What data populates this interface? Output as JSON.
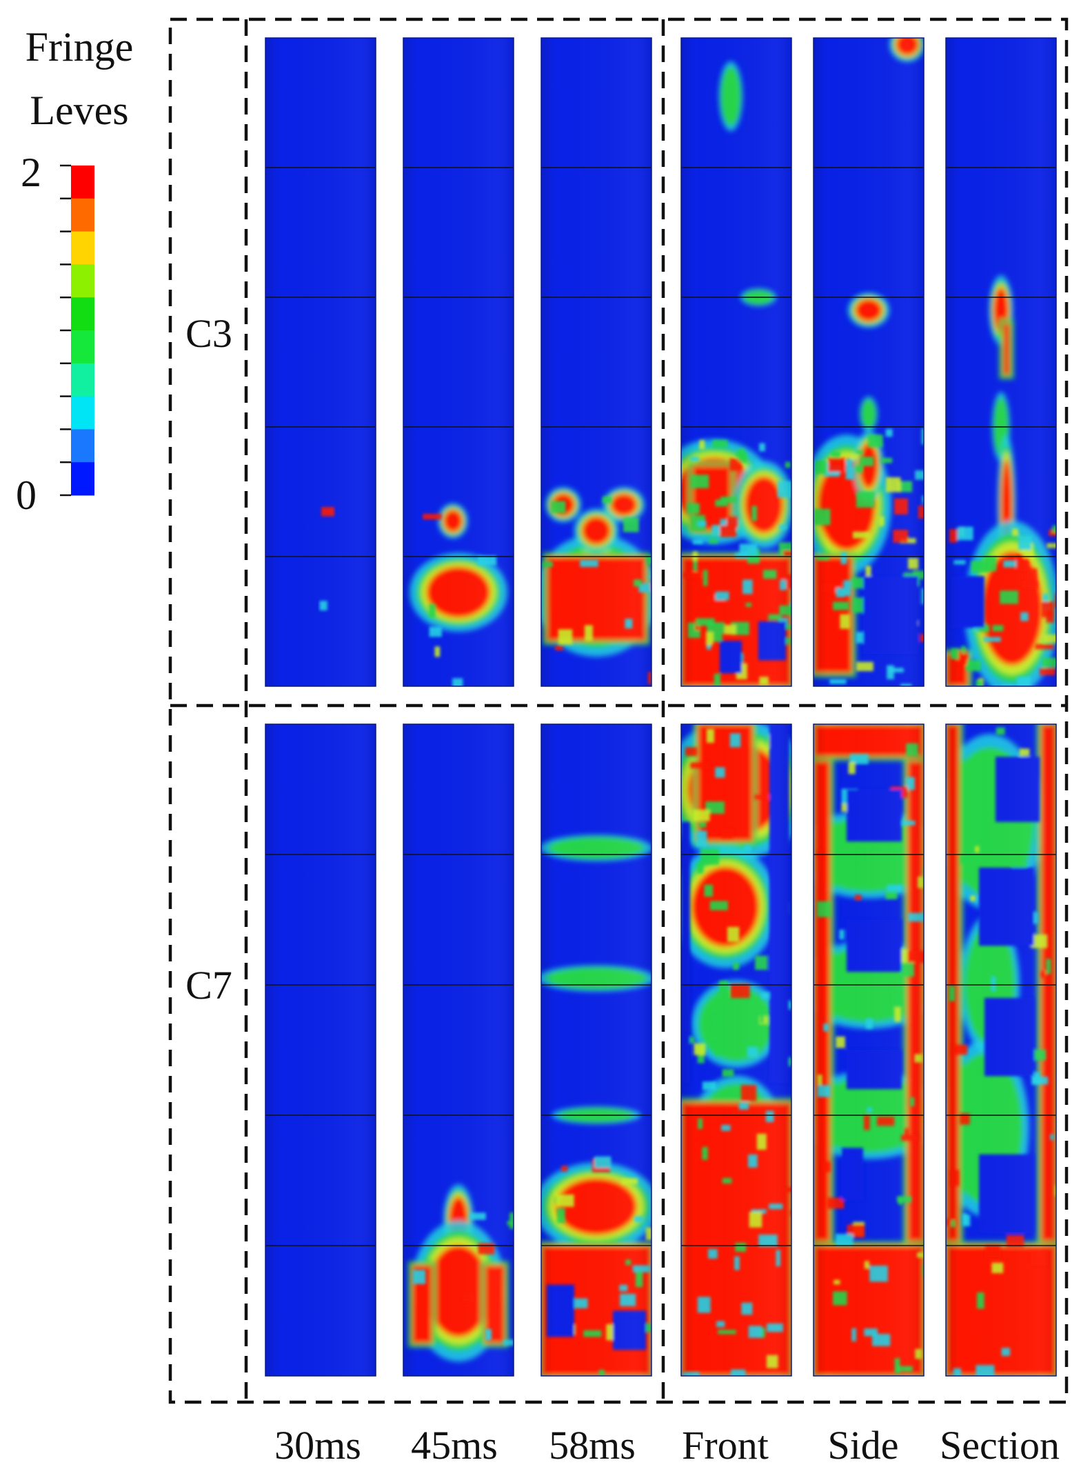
{
  "legend": {
    "title_line1": "Fringe",
    "title_line2": "Leves",
    "max_label": "2",
    "min_label": "0",
    "min_value": 0,
    "max_value": 2,
    "colors": [
      "#ff0000",
      "#ff6a00",
      "#ffd400",
      "#8cf000",
      "#12dc12",
      "#15e83a",
      "#10f0a0",
      "#00e5f5",
      "#1a78ff",
      "#0018ff"
    ]
  },
  "rows": [
    {
      "label": "C3"
    },
    {
      "label": "C7"
    }
  ],
  "columns": [
    "30ms",
    "45ms",
    "58ms",
    "Front",
    "Side",
    "Section"
  ],
  "palette": {
    "low": "#0a22e6",
    "high": "#ff1500",
    "mid_green": "#25d64a",
    "mid_cyan": "#22d2e6",
    "mid_yellow": "#c8ec2a",
    "border": "#111111"
  }
}
